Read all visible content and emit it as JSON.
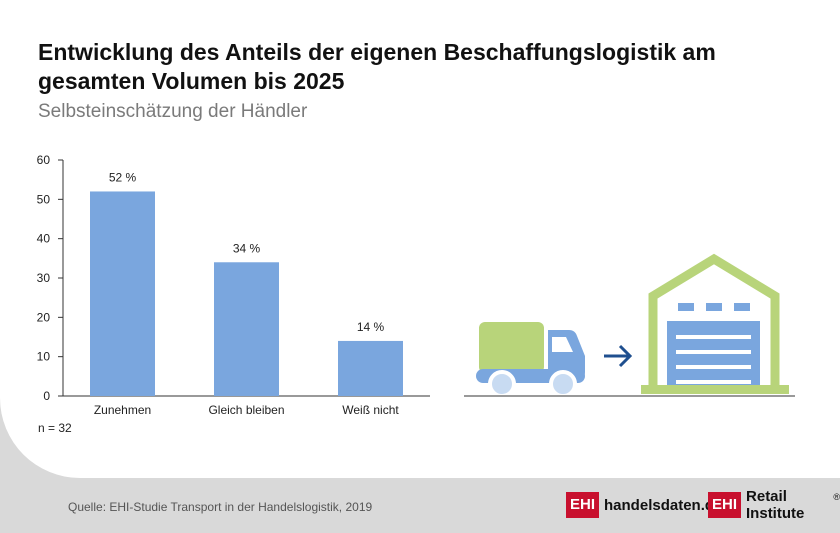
{
  "header": {
    "title": "Entwicklung des Anteils der eigenen Beschaffungslogistik am gesamten Volumen bis 2025",
    "subtitle": "Selbsteinschätzung der Händler"
  },
  "chart_data": {
    "type": "bar",
    "categories": [
      "Zunehmen",
      "Gleich bleiben",
      "Weiß nicht"
    ],
    "values": [
      52,
      34,
      14
    ],
    "value_labels": [
      "52 %",
      "34 %",
      "14 %"
    ],
    "yticks": [
      "0",
      "10",
      "20",
      "30",
      "40",
      "50",
      "60"
    ],
    "ylim": [
      0,
      60
    ],
    "grid": false,
    "bar_color": "#7aa6de"
  },
  "footer": {
    "sample_note": "n = 32",
    "source": "Quelle: EHI-Studie Transport in der Handelslogistik, 2019"
  },
  "logos": [
    {
      "box": "EHI",
      "text": "handelsdaten.de"
    },
    {
      "box": "EHI",
      "text": "Retail Institute",
      "mark": "®"
    }
  ],
  "colors": {
    "brand_red": "#c8102e",
    "truck_cargo": "#b8d47a",
    "truck_cab": "#7aa6de",
    "warehouse_outline": "#b8d47a",
    "arrow": "#1f4f8f"
  },
  "icons": {
    "truck": "delivery-truck-icon",
    "arrow": "arrow-right-icon",
    "warehouse": "warehouse-icon"
  }
}
